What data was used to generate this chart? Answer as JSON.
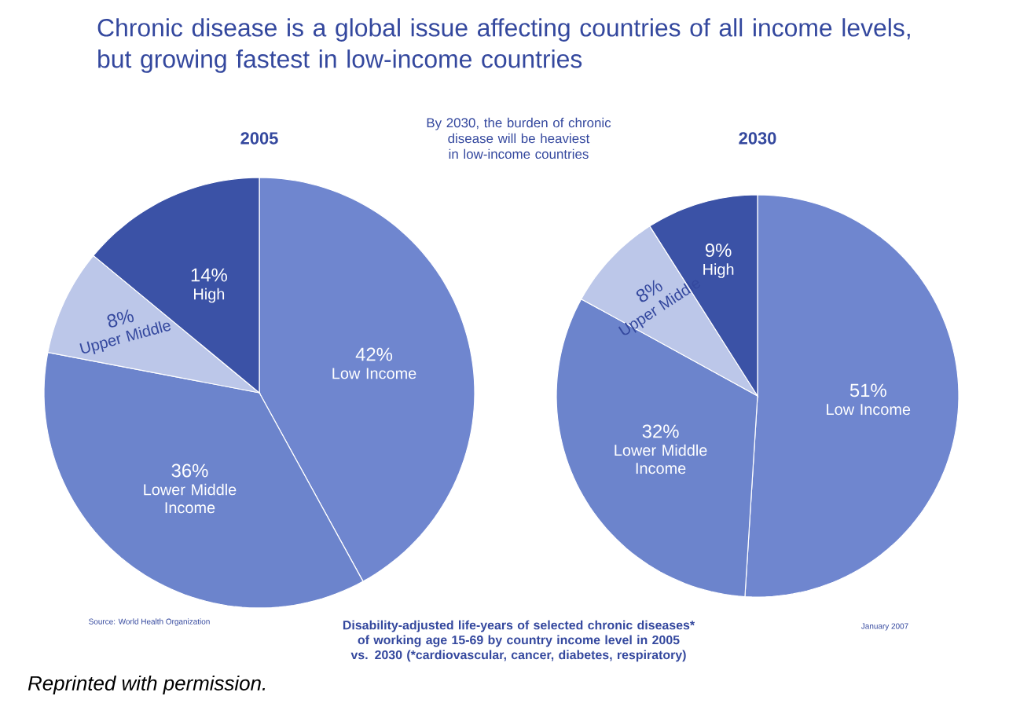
{
  "chart_data": [
    {
      "type": "pie",
      "title": "2005",
      "categories": [
        "Low Income",
        "Lower Middle Income",
        "Upper Middle",
        "High"
      ],
      "values": [
        42,
        36,
        8,
        14
      ],
      "value_labels": [
        "42%",
        "36%",
        "8%",
        "14%"
      ],
      "colors": [
        "#6f86cf",
        "#6c84cc",
        "#bcc7e9",
        "#3b52a6"
      ],
      "annotations": [
        "Chronic disease is a global issue affecting countries of all income levels, but growing fastest in low-income countries",
        "By 2030, the burden of chronic disease will be heaviest in low-income countries",
        "Disability-adjusted life-years of selected chronic diseases* of working age 15-69 by country income level in 2005 vs. 2030 (*cardiovascular, cancer, diabetes, respiratory)",
        "Source: World Health Organization",
        "January 2007",
        "Reprinted with permission."
      ]
    },
    {
      "type": "pie",
      "title": "2030",
      "categories": [
        "Low Income",
        "Lower Middle Income",
        "Upper Middle",
        "High"
      ],
      "values": [
        51,
        32,
        8,
        9
      ],
      "value_labels": [
        "51%",
        "32%",
        "8%",
        "9%"
      ],
      "colors": [
        "#6f86cf",
        "#6c84cc",
        "#bcc7e9",
        "#3b52a6"
      ]
    }
  ]
}
